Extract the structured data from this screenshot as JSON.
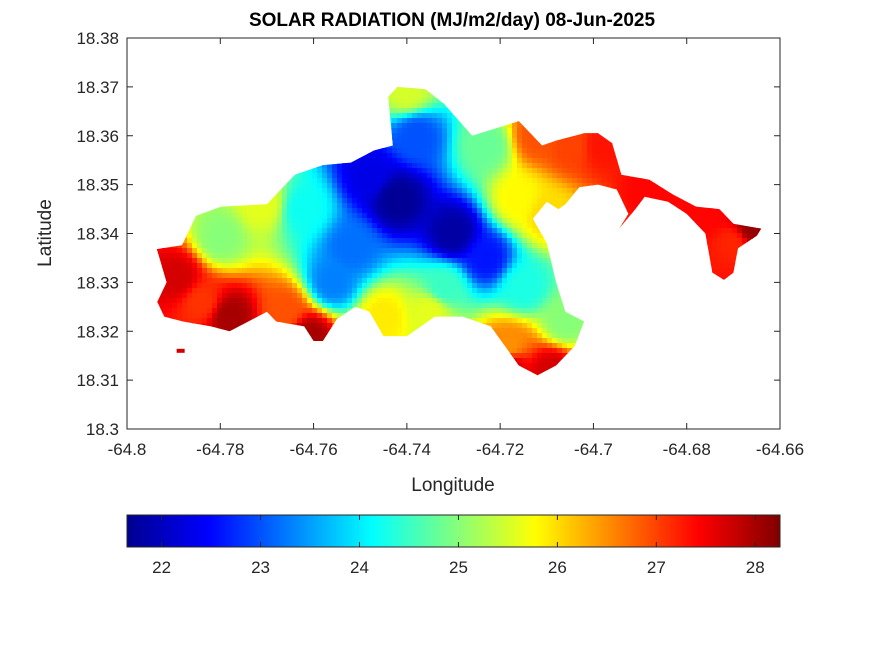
{
  "chart_data": {
    "type": "heatmap",
    "title": "SOLAR RADIATION (MJ/m2/day) 08-Jun-2025",
    "xlabel": "Longitude",
    "ylabel": "Latitude",
    "xlim": [
      -64.8,
      -64.66
    ],
    "ylim": [
      18.3,
      18.38
    ],
    "xticks": [
      -64.8,
      -64.78,
      -64.76,
      -64.74,
      -64.72,
      -64.7,
      -64.68,
      -64.66
    ],
    "xtick_labels": [
      "-64.8",
      "-64.78",
      "-64.76",
      "-64.74",
      "-64.72",
      "-64.7",
      "-64.68",
      "-64.66"
    ],
    "yticks": [
      18.3,
      18.31,
      18.32,
      18.33,
      18.34,
      18.35,
      18.36,
      18.37,
      18.38
    ],
    "ytick_labels": [
      "18.3",
      "18.31",
      "18.32",
      "18.33",
      "18.34",
      "18.35",
      "18.36",
      "18.37",
      "18.38"
    ],
    "grid": false,
    "colormap": "jet",
    "colorbar": {
      "orientation": "horizontal",
      "location": "bottom",
      "range": [
        21.65,
        28.25
      ],
      "ticks": [
        22,
        23,
        24,
        25,
        26,
        27,
        28
      ],
      "tick_labels": [
        "22",
        "23",
        "24",
        "25",
        "26",
        "27",
        "28"
      ]
    },
    "jet_stops": [
      "#00008f",
      "#0000ff",
      "#00ffff",
      "#ffff00",
      "#ff0000",
      "#800000"
    ],
    "land_outline": [
      [
        -64.7936,
        18.3368
      ],
      [
        -64.7882,
        18.3376
      ],
      [
        -64.7852,
        18.3436
      ],
      [
        -64.7798,
        18.3455
      ],
      [
        -64.77,
        18.346
      ],
      [
        -64.764,
        18.352
      ],
      [
        -64.758,
        18.354
      ],
      [
        -64.752,
        18.3545
      ],
      [
        -64.747,
        18.357
      ],
      [
        -64.743,
        18.358
      ],
      [
        -64.744,
        18.368
      ],
      [
        -64.742,
        18.37
      ],
      [
        -64.736,
        18.3695
      ],
      [
        -64.732,
        18.3665
      ],
      [
        -64.726,
        18.36
      ],
      [
        -64.716,
        18.363
      ],
      [
        -64.714,
        18.361
      ],
      [
        -64.711,
        18.358
      ],
      [
        -64.708,
        18.359
      ],
      [
        -64.702,
        18.3605
      ],
      [
        -64.699,
        18.3605
      ],
      [
        -64.696,
        18.3585
      ],
      [
        -64.694,
        18.352
      ],
      [
        -64.688,
        18.351
      ],
      [
        -64.683,
        18.348
      ],
      [
        -64.678,
        18.3455
      ],
      [
        -64.673,
        18.345
      ],
      [
        -64.67,
        18.342
      ],
      [
        -64.664,
        18.341
      ],
      [
        -64.665,
        18.3395
      ],
      [
        -64.669,
        18.337
      ],
      [
        -64.67,
        18.332
      ],
      [
        -64.672,
        18.3305
      ],
      [
        -64.6745,
        18.332
      ],
      [
        -64.676,
        18.34
      ],
      [
        -64.68,
        18.344
      ],
      [
        -64.684,
        18.3465
      ],
      [
        -64.689,
        18.3475
      ],
      [
        -64.691,
        18.345
      ],
      [
        -64.6945,
        18.341
      ],
      [
        -64.6925,
        18.344
      ],
      [
        -64.695,
        18.349
      ],
      [
        -64.699,
        18.35
      ],
      [
        -64.703,
        18.3495
      ],
      [
        -64.706,
        18.346
      ],
      [
        -64.7075,
        18.345
      ],
      [
        -64.71,
        18.3465
      ],
      [
        -64.713,
        18.343
      ],
      [
        -64.71,
        18.338
      ],
      [
        -64.708,
        18.33
      ],
      [
        -64.706,
        18.324
      ],
      [
        -64.702,
        18.322
      ],
      [
        -64.704,
        18.317
      ],
      [
        -64.708,
        18.313
      ],
      [
        -64.712,
        18.311
      ],
      [
        -64.716,
        18.313
      ],
      [
        -64.719,
        18.317
      ],
      [
        -64.722,
        18.321
      ],
      [
        -64.728,
        18.323
      ],
      [
        -64.734,
        18.323
      ],
      [
        -64.74,
        18.319
      ],
      [
        -64.745,
        18.319
      ],
      [
        -64.748,
        18.324
      ],
      [
        -64.751,
        18.325
      ],
      [
        -64.755,
        18.3225
      ],
      [
        -64.758,
        18.318
      ],
      [
        -64.76,
        18.318
      ],
      [
        -64.762,
        18.321
      ],
      [
        -64.768,
        18.322
      ],
      [
        -64.77,
        18.324
      ],
      [
        -64.774,
        18.322
      ],
      [
        -64.778,
        18.32
      ],
      [
        -64.782,
        18.321
      ],
      [
        -64.788,
        18.322
      ],
      [
        -64.792,
        18.323
      ],
      [
        -64.7935,
        18.326
      ],
      [
        -64.7915,
        18.33
      ]
    ],
    "value_sources": [
      {
        "lon": -64.742,
        "lat": 18.347,
        "value": 21.7
      },
      {
        "lon": -64.73,
        "lat": 18.34,
        "value": 21.8
      },
      {
        "lon": -64.723,
        "lat": 18.335,
        "value": 22.6
      },
      {
        "lon": -64.738,
        "lat": 18.36,
        "value": 23.0
      },
      {
        "lon": -64.756,
        "lat": 18.33,
        "value": 23.3
      },
      {
        "lon": -64.762,
        "lat": 18.345,
        "value": 24.2
      },
      {
        "lon": -64.723,
        "lat": 18.358,
        "value": 24.8
      },
      {
        "lon": -64.74,
        "lat": 18.369,
        "value": 25.5
      },
      {
        "lon": -64.78,
        "lat": 18.339,
        "value": 25.0
      },
      {
        "lon": -64.771,
        "lat": 18.346,
        "value": 25.6
      },
      {
        "lon": -64.745,
        "lat": 18.323,
        "value": 25.9
      },
      {
        "lon": -64.735,
        "lat": 18.324,
        "value": 25.6
      },
      {
        "lon": -64.716,
        "lat": 18.347,
        "value": 25.8
      },
      {
        "lon": -64.71,
        "lat": 18.344,
        "value": 26.0
      },
      {
        "lon": -64.712,
        "lat": 18.36,
        "value": 26.9
      },
      {
        "lon": -64.705,
        "lat": 18.358,
        "value": 27.0
      },
      {
        "lon": -64.698,
        "lat": 18.358,
        "value": 27.3
      },
      {
        "lon": -64.688,
        "lat": 18.349,
        "value": 27.4
      },
      {
        "lon": -64.676,
        "lat": 18.344,
        "value": 27.4
      },
      {
        "lon": -64.67,
        "lat": 18.338,
        "value": 27.2
      },
      {
        "lon": -64.666,
        "lat": 18.341,
        "value": 28.1
      },
      {
        "lon": -64.789,
        "lat": 18.331,
        "value": 27.7
      },
      {
        "lon": -64.778,
        "lat": 18.323,
        "value": 28.0
      },
      {
        "lon": -64.784,
        "lat": 18.326,
        "value": 27.1
      },
      {
        "lon": -64.766,
        "lat": 18.324,
        "value": 26.9
      },
      {
        "lon": -64.761,
        "lat": 18.319,
        "value": 28.0
      },
      {
        "lon": -64.732,
        "lat": 18.329,
        "value": 24.5
      },
      {
        "lon": -64.715,
        "lat": 18.329,
        "value": 24.3
      },
      {
        "lon": -64.718,
        "lat": 18.317,
        "value": 26.5
      },
      {
        "lon": -64.709,
        "lat": 18.312,
        "value": 27.7
      },
      {
        "lon": -64.718,
        "lat": 18.313,
        "value": 27.7
      },
      {
        "lon": -64.706,
        "lat": 18.322,
        "value": 25.0
      },
      {
        "lon": -64.752,
        "lat": 18.337,
        "value": 23.2
      },
      {
        "lon": -64.748,
        "lat": 18.352,
        "value": 22.3
      }
    ],
    "outlier_points": [
      {
        "lon": -64.7885,
        "lat": 18.316
      }
    ]
  }
}
